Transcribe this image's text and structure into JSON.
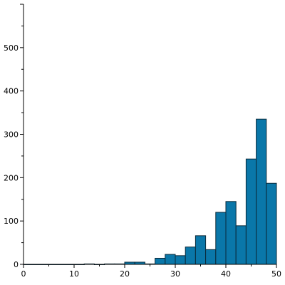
{
  "chart_data": {
    "type": "bar",
    "title": "",
    "xlabel": "",
    "ylabel": "",
    "bin_width": 2,
    "bins": [
      {
        "x0": 0,
        "x1": 2,
        "value": 0
      },
      {
        "x0": 2,
        "x1": 4,
        "value": 0
      },
      {
        "x0": 4,
        "x1": 6,
        "value": 0
      },
      {
        "x0": 6,
        "x1": 8,
        "value": 0
      },
      {
        "x0": 8,
        "x1": 10,
        "value": 0
      },
      {
        "x0": 10,
        "x1": 12,
        "value": 0
      },
      {
        "x0": 12,
        "x1": 14,
        "value": 1
      },
      {
        "x0": 14,
        "x1": 16,
        "value": 0
      },
      {
        "x0": 16,
        "x1": 18,
        "value": 1
      },
      {
        "x0": 18,
        "x1": 20,
        "value": 1
      },
      {
        "x0": 20,
        "x1": 22,
        "value": 5
      },
      {
        "x0": 22,
        "x1": 24,
        "value": 5
      },
      {
        "x0": 24,
        "x1": 26,
        "value": 1
      },
      {
        "x0": 26,
        "x1": 28,
        "value": 14
      },
      {
        "x0": 28,
        "x1": 30,
        "value": 23
      },
      {
        "x0": 30,
        "x1": 32,
        "value": 20
      },
      {
        "x0": 32,
        "x1": 34,
        "value": 40
      },
      {
        "x0": 34,
        "x1": 36,
        "value": 66
      },
      {
        "x0": 36,
        "x1": 38,
        "value": 34
      },
      {
        "x0": 38,
        "x1": 40,
        "value": 120
      },
      {
        "x0": 40,
        "x1": 42,
        "value": 145
      },
      {
        "x0": 42,
        "x1": 44,
        "value": 89
      },
      {
        "x0": 44,
        "x1": 46,
        "value": 243
      },
      {
        "x0": 46,
        "x1": 48,
        "value": 335
      },
      {
        "x0": 48,
        "x1": 50,
        "value": 187
      }
    ],
    "extra_bars_note_removed": true,
    "xlim": [
      0,
      50
    ],
    "ylim": [
      0,
      600
    ],
    "x_ticks": [
      0,
      10,
      20,
      30,
      40,
      50
    ],
    "y_ticks": [
      0,
      100,
      200,
      300,
      400,
      500
    ],
    "grid": false,
    "legend": "none",
    "bar_color": "#0a77a9",
    "bar_edge_color": "#0a2a3a"
  }
}
